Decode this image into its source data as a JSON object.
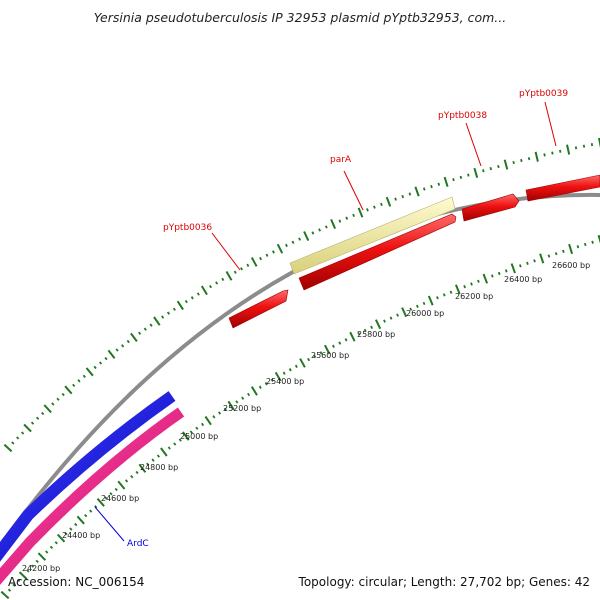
{
  "header": {
    "title": "Yersinia pseudotuberculosis IP 32953 plasmid pYptb32953, com..."
  },
  "footer": {
    "accession": "Accession: NC_006154",
    "summary": "Topology: circular; Length: 27,702 bp; Genes: 42"
  },
  "colors": {
    "backbone": "#8c8c8c",
    "forward_gene": "#ee1111",
    "parA_highlight": "#eeea9e",
    "blue_feature": "#1111ee",
    "pink_feature": "#ee2288",
    "tick_mark": "#227722",
    "gene_label": "#dd0000",
    "ardC_label": "#0000dd"
  },
  "position_labels": [
    "24200 bp",
    "24400 bp",
    "24600 bp",
    "24800 bp",
    "25000 bp",
    "25200 bp",
    "25400 bp",
    "25600 bp",
    "25800 bp",
    "26000 bp",
    "26200 bp",
    "26400 bp",
    "26600 bp"
  ],
  "gene_labels": [
    {
      "id": "pYptb0036",
      "text": "pYptb0036",
      "color": "#dd0000"
    },
    {
      "id": "parA",
      "text": "parA",
      "color": "#dd0000"
    },
    {
      "id": "pYptb0038",
      "text": "pYptb0038",
      "color": "#dd0000"
    },
    {
      "id": "pYptb0039",
      "text": "pYptb0039",
      "color": "#dd0000"
    },
    {
      "id": "ArdC",
      "text": "ArdC",
      "color": "#0000dd"
    }
  ]
}
